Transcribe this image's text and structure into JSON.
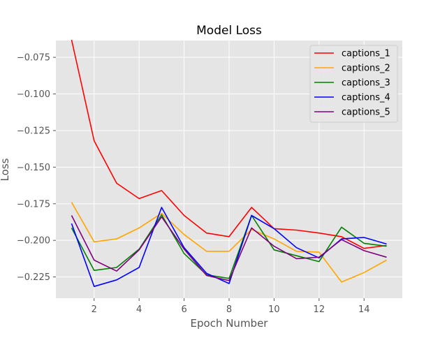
{
  "chart_data": {
    "type": "line",
    "title": "Model Loss",
    "xlabel": "Epoch Number",
    "ylabel": "Loss",
    "x": [
      1,
      2,
      3,
      4,
      5,
      6,
      7,
      8,
      9,
      10,
      11,
      12,
      13,
      14,
      15
    ],
    "xlim": [
      0.3,
      15.7
    ],
    "ylim": [
      -0.2395,
      -0.0635
    ],
    "xticks": [
      2,
      4,
      6,
      8,
      10,
      12,
      14
    ],
    "xtick_labels": [
      "2",
      "4",
      "6",
      "8",
      "10",
      "12",
      "14"
    ],
    "yticks": [
      -0.225,
      -0.2,
      -0.175,
      -0.15,
      -0.125,
      -0.1,
      -0.075
    ],
    "ytick_labels": [
      "−0.225",
      "−0.200",
      "−0.175",
      "−0.150",
      "−0.125",
      "−0.100",
      "−0.075"
    ],
    "grid": true,
    "legend_position": "top-right",
    "background": "#e5e5e5",
    "series": [
      {
        "name": "captions_1",
        "color": "#ff0000",
        "values": [
          -0.063,
          -0.132,
          -0.161,
          -0.1715,
          -0.166,
          -0.183,
          -0.195,
          -0.1975,
          -0.1775,
          -0.192,
          -0.193,
          -0.195,
          -0.1975,
          -0.2055,
          -0.2035
        ]
      },
      {
        "name": "captions_2",
        "color": "#ffa500",
        "values": [
          -0.174,
          -0.201,
          -0.199,
          -0.1915,
          -0.1815,
          -0.196,
          -0.2075,
          -0.2075,
          -0.1925,
          -0.199,
          -0.2075,
          -0.208,
          -0.2285,
          -0.222,
          -0.2135
        ]
      },
      {
        "name": "captions_3",
        "color": "#008000",
        "values": [
          -0.1915,
          -0.2205,
          -0.2185,
          -0.206,
          -0.1825,
          -0.209,
          -0.2235,
          -0.226,
          -0.183,
          -0.2065,
          -0.2105,
          -0.2145,
          -0.191,
          -0.202,
          -0.204
        ]
      },
      {
        "name": "captions_4",
        "color": "#0000ff",
        "values": [
          -0.1885,
          -0.2315,
          -0.227,
          -0.2185,
          -0.1775,
          -0.205,
          -0.2225,
          -0.2295,
          -0.183,
          -0.192,
          -0.205,
          -0.212,
          -0.199,
          -0.198,
          -0.2025
        ]
      },
      {
        "name": "captions_5",
        "color": "#800080",
        "values": [
          -0.183,
          -0.2135,
          -0.221,
          -0.2065,
          -0.184,
          -0.206,
          -0.224,
          -0.2275,
          -0.1915,
          -0.204,
          -0.2125,
          -0.2115,
          -0.1995,
          -0.207,
          -0.2115
        ]
      }
    ]
  }
}
